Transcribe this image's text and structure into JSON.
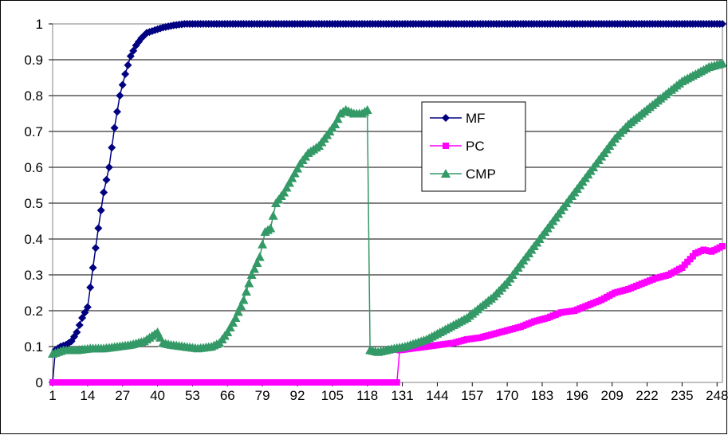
{
  "chart_data": {
    "type": "line",
    "title": "",
    "xlabel": "",
    "ylabel": "",
    "xlim": [
      1,
      250
    ],
    "ylim": [
      0,
      1
    ],
    "grid": true,
    "legend_position": "center-right",
    "x_ticks": [
      1,
      14,
      27,
      40,
      53,
      66,
      79,
      92,
      105,
      118,
      131,
      144,
      157,
      170,
      183,
      196,
      209,
      222,
      235,
      248
    ],
    "y_ticks": [
      0,
      0.1,
      0.2,
      0.3,
      0.4,
      0.5,
      0.6,
      0.7,
      0.8,
      0.9,
      1
    ],
    "y_tick_labels": [
      "0",
      "0.1",
      "0.2",
      "0.3",
      "0.4",
      "0.5",
      "0.6",
      "0.7",
      "0.8",
      "0.9",
      "1"
    ],
    "series": [
      {
        "name": "MF",
        "color": "#000080",
        "marker": "diamond",
        "points": [
          [
            1,
            0.0
          ],
          [
            2,
            0.09
          ],
          [
            4,
            0.1
          ],
          [
            6,
            0.105
          ],
          [
            8,
            0.115
          ],
          [
            10,
            0.14
          ],
          [
            12,
            0.18
          ],
          [
            14,
            0.21
          ],
          [
            16,
            0.32
          ],
          [
            18,
            0.43
          ],
          [
            20,
            0.53
          ],
          [
            22,
            0.6
          ],
          [
            24,
            0.71
          ],
          [
            26,
            0.8
          ],
          [
            28,
            0.86
          ],
          [
            30,
            0.91
          ],
          [
            32,
            0.94
          ],
          [
            34,
            0.96
          ],
          [
            36,
            0.975
          ],
          [
            38,
            0.98
          ],
          [
            40,
            0.985
          ],
          [
            42,
            0.99
          ],
          [
            44,
            0.993
          ],
          [
            46,
            0.996
          ],
          [
            48,
            0.998
          ],
          [
            50,
            1.0
          ],
          [
            60,
            1.0
          ],
          [
            80,
            1.0
          ],
          [
            100,
            1.0
          ],
          [
            120,
            1.0
          ],
          [
            140,
            1.0
          ],
          [
            160,
            1.0
          ],
          [
            180,
            1.0
          ],
          [
            200,
            1.0
          ],
          [
            220,
            1.0
          ],
          [
            240,
            1.0
          ],
          [
            250,
            1.0
          ]
        ]
      },
      {
        "name": "PC",
        "color": "#FF00FF",
        "marker": "square",
        "points": [
          [
            1,
            0.0
          ],
          [
            20,
            0.0
          ],
          [
            40,
            0.0
          ],
          [
            60,
            0.0
          ],
          [
            80,
            0.0
          ],
          [
            100,
            0.0
          ],
          [
            120,
            0.0
          ],
          [
            129,
            0.0
          ],
          [
            130,
            0.09
          ],
          [
            135,
            0.095
          ],
          [
            140,
            0.1
          ],
          [
            145,
            0.105
          ],
          [
            150,
            0.11
          ],
          [
            155,
            0.12
          ],
          [
            160,
            0.125
          ],
          [
            165,
            0.135
          ],
          [
            170,
            0.145
          ],
          [
            175,
            0.155
          ],
          [
            180,
            0.17
          ],
          [
            185,
            0.18
          ],
          [
            190,
            0.195
          ],
          [
            195,
            0.2
          ],
          [
            200,
            0.215
          ],
          [
            205,
            0.23
          ],
          [
            210,
            0.25
          ],
          [
            215,
            0.26
          ],
          [
            220,
            0.275
          ],
          [
            225,
            0.29
          ],
          [
            230,
            0.3
          ],
          [
            235,
            0.32
          ],
          [
            240,
            0.36
          ],
          [
            243,
            0.37
          ],
          [
            246,
            0.365
          ],
          [
            250,
            0.38
          ]
        ]
      },
      {
        "name": "CMP",
        "color": "#339966",
        "marker": "triangle",
        "points": [
          [
            1,
            0.08
          ],
          [
            5,
            0.09
          ],
          [
            10,
            0.09
          ],
          [
            15,
            0.095
          ],
          [
            20,
            0.095
          ],
          [
            25,
            0.1
          ],
          [
            30,
            0.105
          ],
          [
            35,
            0.115
          ],
          [
            38,
            0.13
          ],
          [
            40,
            0.14
          ],
          [
            42,
            0.11
          ],
          [
            45,
            0.105
          ],
          [
            50,
            0.1
          ],
          [
            55,
            0.095
          ],
          [
            60,
            0.1
          ],
          [
            63,
            0.11
          ],
          [
            66,
            0.14
          ],
          [
            69,
            0.18
          ],
          [
            72,
            0.23
          ],
          [
            75,
            0.3
          ],
          [
            78,
            0.35
          ],
          [
            80,
            0.42
          ],
          [
            82,
            0.43
          ],
          [
            84,
            0.5
          ],
          [
            87,
            0.53
          ],
          [
            90,
            0.57
          ],
          [
            93,
            0.61
          ],
          [
            96,
            0.64
          ],
          [
            100,
            0.66
          ],
          [
            103,
            0.69
          ],
          [
            106,
            0.72
          ],
          [
            108,
            0.75
          ],
          [
            110,
            0.76
          ],
          [
            113,
            0.75
          ],
          [
            116,
            0.75
          ],
          [
            118,
            0.76
          ],
          [
            119,
            0.09
          ],
          [
            122,
            0.085
          ],
          [
            125,
            0.09
          ],
          [
            128,
            0.095
          ],
          [
            132,
            0.1
          ],
          [
            136,
            0.11
          ],
          [
            140,
            0.12
          ],
          [
            145,
            0.14
          ],
          [
            150,
            0.16
          ],
          [
            155,
            0.18
          ],
          [
            160,
            0.21
          ],
          [
            165,
            0.24
          ],
          [
            170,
            0.28
          ],
          [
            175,
            0.33
          ],
          [
            180,
            0.38
          ],
          [
            185,
            0.43
          ],
          [
            190,
            0.48
          ],
          [
            195,
            0.53
          ],
          [
            200,
            0.58
          ],
          [
            205,
            0.63
          ],
          [
            210,
            0.68
          ],
          [
            215,
            0.72
          ],
          [
            220,
            0.75
          ],
          [
            225,
            0.78
          ],
          [
            230,
            0.81
          ],
          [
            235,
            0.84
          ],
          [
            240,
            0.86
          ],
          [
            245,
            0.88
          ],
          [
            250,
            0.89
          ]
        ]
      }
    ]
  }
}
